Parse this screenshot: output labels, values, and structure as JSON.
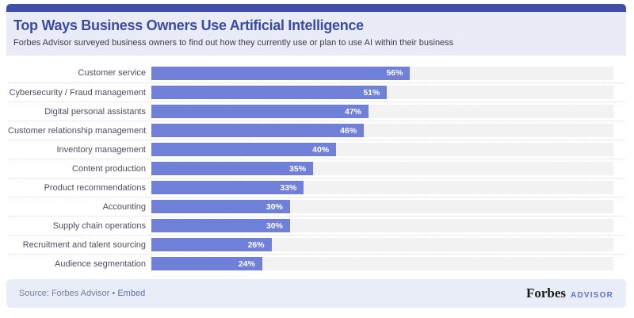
{
  "header": {
    "title": "Top Ways Business Owners Use Artificial Intelligence",
    "subtitle": "Forbes Advisor surveyed business owners to find out how they currently use or plan to use AI within their business"
  },
  "chart_data": {
    "type": "bar",
    "orientation": "horizontal",
    "categories": [
      "Customer service",
      "Cybersecurity / Fraud management",
      "Digital personal assistants",
      "Customer relationship management",
      "Inventory management",
      "Content production",
      "Product recommendations",
      "Accounting",
      "Supply chain operations",
      "Recruitment and talent sourcing",
      "Audience segmentation"
    ],
    "values": [
      56,
      51,
      47,
      46,
      40,
      35,
      33,
      30,
      30,
      26,
      24
    ],
    "value_suffix": "%",
    "xlim": [
      0,
      100
    ],
    "grid": "off",
    "legend": "none",
    "bar_color": "#7080d8",
    "track_color": "#f2f2f3"
  },
  "footer": {
    "source_prefix": "Source: Forbes Advisor",
    "separator": "•",
    "embed_label": "Embed",
    "brand_name": "Forbes",
    "brand_suffix": "ADVISOR"
  },
  "colors": {
    "accent_bar": "#3f4dac",
    "header_bg": "#e9ecf7",
    "title_text": "#3b4ba3",
    "footer_bg": "#e9edf7",
    "bar": "#7080d8"
  }
}
